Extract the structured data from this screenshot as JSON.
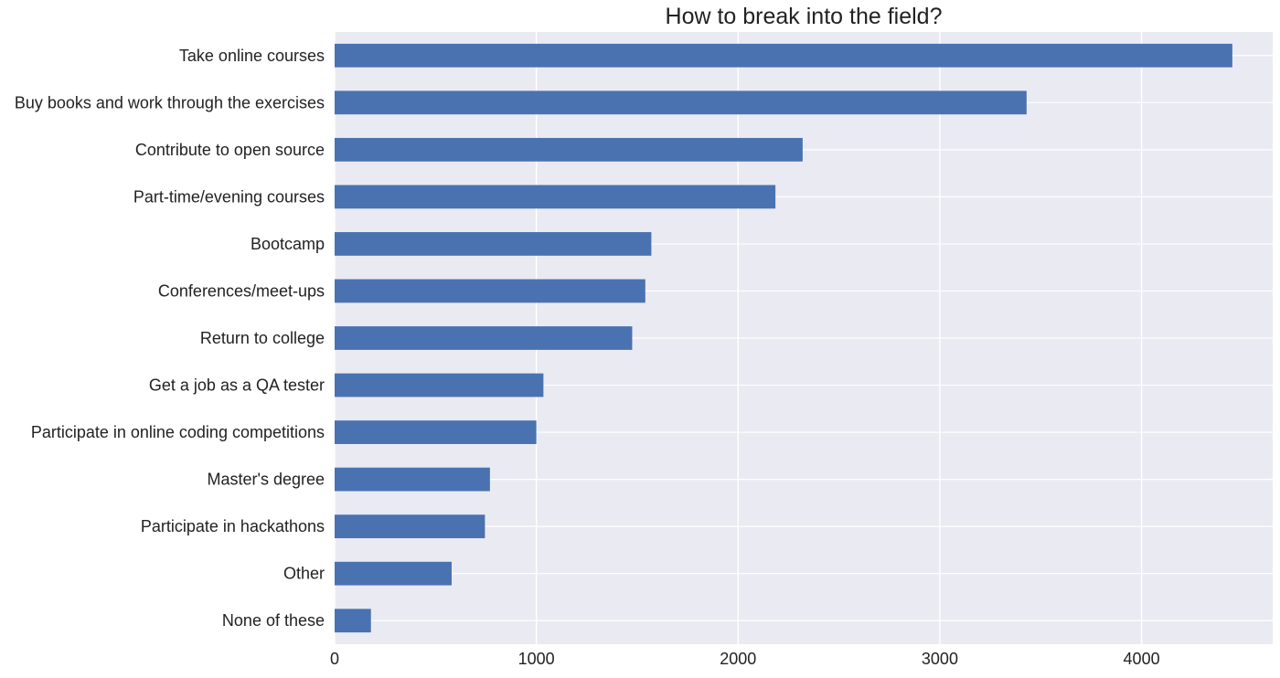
{
  "chart_data": {
    "type": "bar",
    "orientation": "horizontal",
    "title": "How to break into the field?",
    "xlabel": "",
    "ylabel": "",
    "categories": [
      "Take online courses",
      "Buy books and work through the exercises",
      "Contribute to open source",
      "Part-time/evening courses",
      "Bootcamp",
      "Conferences/meet-ups",
      "Return to college",
      "Get a job as a QA tester",
      "Participate in online coding competitions",
      "Master's degree",
      "Participate in hackathons",
      "Other",
      "None of these"
    ],
    "values": [
      4450,
      3430,
      2320,
      2185,
      1570,
      1540,
      1475,
      1035,
      1000,
      770,
      745,
      580,
      180
    ],
    "xlim": [
      0,
      4650
    ],
    "xticks": [
      0,
      1000,
      2000,
      3000,
      4000
    ],
    "grid": true,
    "legend": "none",
    "colors": {
      "bar": "#4a72b0",
      "plot_background": "#eaeaf2",
      "grid": "#ffffff"
    }
  }
}
